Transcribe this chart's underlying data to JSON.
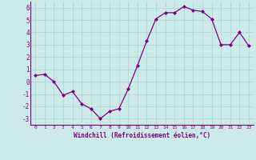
{
  "x": [
    0,
    1,
    2,
    3,
    4,
    5,
    6,
    7,
    8,
    9,
    10,
    11,
    12,
    13,
    14,
    15,
    16,
    17,
    18,
    19,
    20,
    21,
    22,
    23
  ],
  "y": [
    0.5,
    0.6,
    0.0,
    -1.1,
    -0.8,
    -1.8,
    -2.2,
    -3.0,
    -2.4,
    -2.2,
    -0.6,
    1.3,
    3.3,
    5.1,
    5.6,
    5.6,
    6.1,
    5.8,
    5.7,
    5.1,
    3.0,
    3.0,
    4.0,
    2.9
  ],
  "line_color": "#7b007b",
  "marker": "D",
  "marker_size": 2.0,
  "bg_color": "#cdeaea",
  "grid_color": "#b0d8d8",
  "xlabel": "Windchill (Refroidissement éolien,°C)",
  "xlabel_color": "#7b007b",
  "tick_color": "#7b007b",
  "ylim": [
    -3.5,
    6.5
  ],
  "xlim": [
    -0.5,
    23.5
  ],
  "yticks": [
    -3,
    -2,
    -1,
    0,
    1,
    2,
    3,
    4,
    5,
    6
  ],
  "xticks": [
    0,
    1,
    2,
    3,
    4,
    5,
    6,
    7,
    8,
    9,
    10,
    11,
    12,
    13,
    14,
    15,
    16,
    17,
    18,
    19,
    20,
    21,
    22,
    23
  ]
}
